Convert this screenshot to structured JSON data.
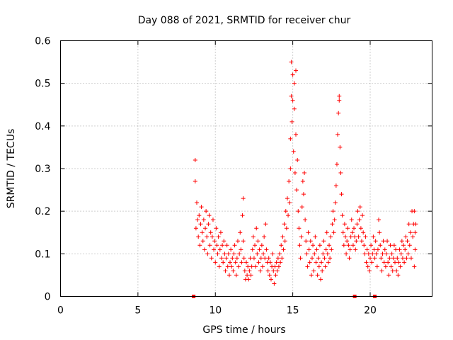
{
  "chart_data": {
    "type": "scatter",
    "title": "Day 088 of 2021, SRMTID for receiver chur",
    "xlabel": "GPS time / hours",
    "ylabel": "SRMTID / TECUs",
    "xlim": [
      0,
      24
    ],
    "ylim": [
      0,
      0.6
    ],
    "xticks": [
      0,
      5,
      10,
      15,
      20
    ],
    "yticks": [
      0,
      0.1,
      0.2,
      0.3,
      0.4,
      0.5,
      0.6
    ],
    "xtick_labels": [
      "0",
      "5",
      "10",
      "15",
      "20"
    ],
    "ytick_labels": [
      "0",
      "0.1",
      "0.2",
      "0.3",
      "0.4",
      "0.5",
      "0.6"
    ],
    "grid": true,
    "marker": "+",
    "color": "#ff0000",
    "zero_markers_x": [
      8.6,
      19.0,
      20.3
    ],
    "series": [
      {
        "name": "SRMTID",
        "points": [
          [
            8.7,
            0.32
          ],
          [
            8.7,
            0.27
          ],
          [
            8.75,
            0.16
          ],
          [
            8.8,
            0.22
          ],
          [
            8.85,
            0.18
          ],
          [
            8.9,
            0.14
          ],
          [
            8.95,
            0.19
          ],
          [
            9.0,
            0.12
          ],
          [
            9.05,
            0.17
          ],
          [
            9.1,
            0.21
          ],
          [
            9.15,
            0.15
          ],
          [
            9.2,
            0.13
          ],
          [
            9.25,
            0.18
          ],
          [
            9.3,
            0.11
          ],
          [
            9.35,
            0.16
          ],
          [
            9.4,
            0.2
          ],
          [
            9.45,
            0.14
          ],
          [
            9.5,
            0.1
          ],
          [
            9.55,
            0.17
          ],
          [
            9.6,
            0.19
          ],
          [
            9.65,
            0.12
          ],
          [
            9.7,
            0.15
          ],
          [
            9.75,
            0.09
          ],
          [
            9.8,
            0.14
          ],
          [
            9.85,
            0.18
          ],
          [
            9.9,
            0.11
          ],
          [
            9.95,
            0.13
          ],
          [
            10.0,
            0.08
          ],
          [
            10.05,
            0.16
          ],
          [
            10.1,
            0.12
          ],
          [
            10.15,
            0.1
          ],
          [
            10.2,
            0.14
          ],
          [
            10.25,
            0.07
          ],
          [
            10.3,
            0.11
          ],
          [
            10.35,
            0.15
          ],
          [
            10.4,
            0.09
          ],
          [
            10.45,
            0.12
          ],
          [
            10.5,
            0.08
          ],
          [
            10.55,
            0.13
          ],
          [
            10.6,
            0.1
          ],
          [
            10.65,
            0.06
          ],
          [
            10.7,
            0.09
          ],
          [
            10.75,
            0.12
          ],
          [
            10.8,
            0.07
          ],
          [
            10.85,
            0.1
          ],
          [
            10.9,
            0.05
          ],
          [
            10.95,
            0.08
          ],
          [
            11.0,
            0.11
          ],
          [
            11.05,
            0.07
          ],
          [
            11.1,
            0.09
          ],
          [
            11.15,
            0.06
          ],
          [
            11.2,
            0.1
          ],
          [
            11.25,
            0.12
          ],
          [
            11.3,
            0.08
          ],
          [
            11.35,
            0.05
          ],
          [
            11.4,
            0.09
          ],
          [
            11.45,
            0.13
          ],
          [
            11.5,
            0.07
          ],
          [
            11.55,
            0.1
          ],
          [
            11.6,
            0.15
          ],
          [
            11.65,
            0.11
          ],
          [
            11.7,
            0.08
          ],
          [
            11.75,
            0.19
          ],
          [
            11.8,
            0.13
          ],
          [
            11.8,
            0.23
          ],
          [
            11.85,
            0.09
          ],
          [
            11.9,
            0.06
          ],
          [
            11.95,
            0.04
          ],
          [
            12.0,
            0.08
          ],
          [
            12.05,
            0.05
          ],
          [
            12.1,
            0.07
          ],
          [
            12.15,
            0.04
          ],
          [
            12.2,
            0.06
          ],
          [
            12.25,
            0.09
          ],
          [
            12.3,
            0.05
          ],
          [
            12.35,
            0.07
          ],
          [
            12.4,
            0.11
          ],
          [
            12.45,
            0.14
          ],
          [
            12.5,
            0.09
          ],
          [
            12.55,
            0.12
          ],
          [
            12.6,
            0.07
          ],
          [
            12.65,
            0.16
          ],
          [
            12.7,
            0.1
          ],
          [
            12.75,
            0.13
          ],
          [
            12.8,
            0.08
          ],
          [
            12.85,
            0.11
          ],
          [
            12.9,
            0.06
          ],
          [
            12.95,
            0.09
          ],
          [
            13.0,
            0.12
          ],
          [
            13.05,
            0.07
          ],
          [
            13.1,
            0.1
          ],
          [
            13.15,
            0.14
          ],
          [
            13.2,
            0.09
          ],
          [
            13.25,
            0.17
          ],
          [
            13.3,
            0.11
          ],
          [
            13.35,
            0.08
          ],
          [
            13.4,
            0.06
          ],
          [
            13.45,
            0.09
          ],
          [
            13.5,
            0.05
          ],
          [
            13.55,
            0.08
          ],
          [
            13.6,
            0.04
          ],
          [
            13.65,
            0.07
          ],
          [
            13.7,
            0.1
          ],
          [
            13.75,
            0.06
          ],
          [
            13.8,
            0.03
          ],
          [
            13.85,
            0.07
          ],
          [
            13.9,
            0.05
          ],
          [
            13.95,
            0.08
          ],
          [
            14.0,
            0.06
          ],
          [
            14.05,
            0.09
          ],
          [
            14.1,
            0.07
          ],
          [
            14.15,
            0.1
          ],
          [
            14.2,
            0.08
          ],
          [
            14.25,
            0.12
          ],
          [
            14.3,
            0.09
          ],
          [
            14.35,
            0.14
          ],
          [
            14.4,
            0.11
          ],
          [
            14.45,
            0.17
          ],
          [
            14.5,
            0.13
          ],
          [
            14.55,
            0.2
          ],
          [
            14.6,
            0.16
          ],
          [
            14.65,
            0.23
          ],
          [
            14.7,
            0.19
          ],
          [
            14.75,
            0.27
          ],
          [
            14.8,
            0.22
          ],
          [
            14.85,
            0.3
          ],
          [
            14.85,
            0.37
          ],
          [
            14.9,
            0.47
          ],
          [
            14.9,
            0.55
          ],
          [
            14.95,
            0.41
          ],
          [
            15.0,
            0.52
          ],
          [
            15.0,
            0.46
          ],
          [
            15.05,
            0.34
          ],
          [
            15.1,
            0.5
          ],
          [
            15.1,
            0.44
          ],
          [
            15.15,
            0.29
          ],
          [
            15.2,
            0.53
          ],
          [
            15.2,
            0.38
          ],
          [
            15.25,
            0.25
          ],
          [
            15.3,
            0.32
          ],
          [
            15.35,
            0.2
          ],
          [
            15.4,
            0.16
          ],
          [
            15.45,
            0.12
          ],
          [
            15.5,
            0.09
          ],
          [
            15.55,
            0.14
          ],
          [
            15.6,
            0.21
          ],
          [
            15.65,
            0.27
          ],
          [
            15.7,
            0.24
          ],
          [
            15.75,
            0.29
          ],
          [
            15.8,
            0.18
          ],
          [
            15.85,
            0.13
          ],
          [
            15.9,
            0.1
          ],
          [
            15.95,
            0.07
          ],
          [
            16.0,
            0.15
          ],
          [
            16.05,
            0.11
          ],
          [
            16.1,
            0.08
          ],
          [
            16.15,
            0.13
          ],
          [
            16.2,
            0.05
          ],
          [
            16.25,
            0.09
          ],
          [
            16.3,
            0.12
          ],
          [
            16.35,
            0.06
          ],
          [
            16.4,
            0.1
          ],
          [
            16.45,
            0.14
          ],
          [
            16.5,
            0.08
          ],
          [
            16.55,
            0.11
          ],
          [
            16.6,
            0.05
          ],
          [
            16.65,
            0.09
          ],
          [
            16.7,
            0.07
          ],
          [
            16.75,
            0.12
          ],
          [
            16.8,
            0.04
          ],
          [
            16.85,
            0.08
          ],
          [
            16.9,
            0.06
          ],
          [
            16.95,
            0.1
          ],
          [
            17.0,
            0.13
          ],
          [
            17.05,
            0.09
          ],
          [
            17.1,
            0.07
          ],
          [
            17.15,
            0.11
          ],
          [
            17.2,
            0.15
          ],
          [
            17.25,
            0.1
          ],
          [
            17.3,
            0.08
          ],
          [
            17.35,
            0.12
          ],
          [
            17.4,
            0.09
          ],
          [
            17.45,
            0.14
          ],
          [
            17.5,
            0.11
          ],
          [
            17.55,
            0.17
          ],
          [
            17.6,
            0.2
          ],
          [
            17.65,
            0.15
          ],
          [
            17.7,
            0.18
          ],
          [
            17.75,
            0.22
          ],
          [
            17.8,
            0.26
          ],
          [
            17.85,
            0.31
          ],
          [
            17.9,
            0.38
          ],
          [
            17.95,
            0.43
          ],
          [
            18.0,
            0.47
          ],
          [
            18.0,
            0.46
          ],
          [
            18.05,
            0.35
          ],
          [
            18.1,
            0.29
          ],
          [
            18.15,
            0.24
          ],
          [
            18.2,
            0.19
          ],
          [
            18.25,
            0.15
          ],
          [
            18.3,
            0.12
          ],
          [
            18.35,
            0.17
          ],
          [
            18.4,
            0.14
          ],
          [
            18.45,
            0.1
          ],
          [
            18.5,
            0.13
          ],
          [
            18.55,
            0.16
          ],
          [
            18.6,
            0.12
          ],
          [
            18.65,
            0.09
          ],
          [
            18.7,
            0.11
          ],
          [
            18.75,
            0.14
          ],
          [
            18.8,
            0.18
          ],
          [
            18.85,
            0.15
          ],
          [
            18.9,
            0.12
          ],
          [
            18.95,
            0.16
          ],
          [
            19.0,
            0.14
          ],
          [
            19.05,
            0.11
          ],
          [
            19.1,
            0.13
          ],
          [
            19.15,
            0.17
          ],
          [
            19.2,
            0.2
          ],
          [
            19.25,
            0.14
          ],
          [
            19.3,
            0.18
          ],
          [
            19.35,
            0.21
          ],
          [
            19.4,
            0.16
          ],
          [
            19.45,
            0.13
          ],
          [
            19.5,
            0.19
          ],
          [
            19.55,
            0.15
          ],
          [
            19.6,
            0.12
          ],
          [
            19.65,
            0.1
          ],
          [
            19.7,
            0.14
          ],
          [
            19.75,
            0.08
          ],
          [
            19.8,
            0.11
          ],
          [
            19.85,
            0.07
          ],
          [
            19.9,
            0.1
          ],
          [
            19.95,
            0.06
          ],
          [
            20.0,
            0.09
          ],
          [
            20.05,
            0.12
          ],
          [
            20.1,
            0.08
          ],
          [
            20.15,
            0.1
          ],
          [
            20.2,
            0.14
          ],
          [
            20.25,
            0.11
          ],
          [
            20.3,
            0.09
          ],
          [
            20.35,
            0.13
          ],
          [
            20.4,
            0.1
          ],
          [
            20.45,
            0.07
          ],
          [
            20.5,
            0.11
          ],
          [
            20.55,
            0.18
          ],
          [
            20.6,
            0.15
          ],
          [
            20.65,
            0.12
          ],
          [
            20.7,
            0.09
          ],
          [
            20.75,
            0.06
          ],
          [
            20.8,
            0.1
          ],
          [
            20.85,
            0.13
          ],
          [
            20.9,
            0.08
          ],
          [
            20.95,
            0.11
          ],
          [
            21.0,
            0.07
          ],
          [
            21.05,
            0.1
          ],
          [
            21.1,
            0.13
          ],
          [
            21.15,
            0.08
          ],
          [
            21.2,
            0.05
          ],
          [
            21.25,
            0.09
          ],
          [
            21.3,
            0.12
          ],
          [
            21.35,
            0.07
          ],
          [
            21.4,
            0.1
          ],
          [
            21.45,
            0.06
          ],
          [
            21.5,
            0.09
          ],
          [
            21.55,
            0.12
          ],
          [
            21.6,
            0.08
          ],
          [
            21.65,
            0.11
          ],
          [
            21.7,
            0.06
          ],
          [
            21.75,
            0.09
          ],
          [
            21.8,
            0.05
          ],
          [
            21.85,
            0.08
          ],
          [
            21.9,
            0.11
          ],
          [
            21.95,
            0.07
          ],
          [
            22.0,
            0.1
          ],
          [
            22.05,
            0.13
          ],
          [
            22.1,
            0.09
          ],
          [
            22.15,
            0.12
          ],
          [
            22.2,
            0.08
          ],
          [
            22.25,
            0.11
          ],
          [
            22.3,
            0.14
          ],
          [
            22.35,
            0.09
          ],
          [
            22.4,
            0.13
          ],
          [
            22.45,
            0.1
          ],
          [
            22.5,
            0.17
          ],
          [
            22.55,
            0.12
          ],
          [
            22.6,
            0.15
          ],
          [
            22.65,
            0.09
          ],
          [
            22.7,
            0.2
          ],
          [
            22.75,
            0.14
          ],
          [
            22.8,
            0.17
          ],
          [
            22.85,
            0.07
          ],
          [
            22.85,
            0.2
          ],
          [
            22.9,
            0.15
          ],
          [
            22.9,
            0.11
          ],
          [
            22.95,
            0.17
          ]
        ]
      }
    ]
  }
}
